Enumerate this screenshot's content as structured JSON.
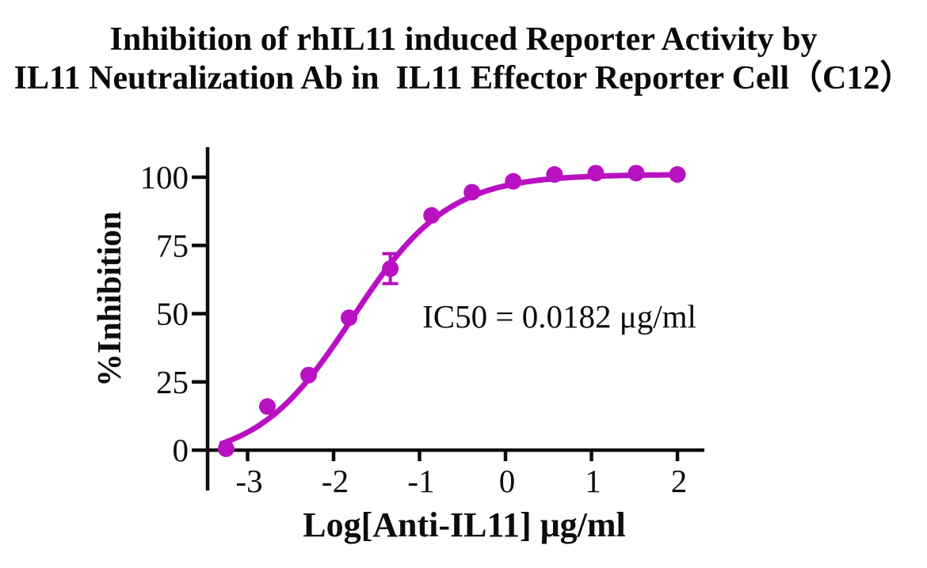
{
  "page": {
    "background": "#ffffff"
  },
  "title": {
    "line1": "Inhibition of rhIL11 induced Reporter Activity by",
    "line2": "IL11 Neutralization Ab in  IL11 Effector Reporter Cell（C12）"
  },
  "chart_data": {
    "type": "scatter",
    "title": "Inhibition of rhIL11 induced Reporter Activity by IL11 Neutralization Ab in IL11 Effector Reporter Cell（C12）",
    "xlabel": "Log[Anti-IL11] μg/ml",
    "ylabel": "%Inhibition",
    "x_ticks": [
      -3,
      -2,
      -1,
      0,
      1,
      2
    ],
    "y_ticks": [
      0,
      25,
      50,
      75,
      100
    ],
    "xlim": [
      -3.45,
      2.31
    ],
    "ylim": [
      0,
      111
    ],
    "grid": false,
    "legend": "none",
    "accent_color": "#B911C1",
    "axis_color": "#0d0d0d",
    "annotation": {
      "text": "IC50 = 0.0182 μg/ml",
      "ic50_ug_ml": 0.0182
    },
    "series": [
      {
        "name": "IL11 Neutralization Ab",
        "marker": "circle",
        "color": "#B911C1",
        "points": [
          {
            "x": -3.25,
            "y": 0.5
          },
          {
            "x": -2.77,
            "y": 16
          },
          {
            "x": -2.29,
            "y": 27.5
          },
          {
            "x": -1.82,
            "y": 48.5
          },
          {
            "x": -1.34,
            "y": 66.5,
            "err": 5.5
          },
          {
            "x": -0.86,
            "y": 86
          },
          {
            "x": -0.39,
            "y": 94.5
          },
          {
            "x": 0.09,
            "y": 98.5
          },
          {
            "x": 0.57,
            "y": 101
          },
          {
            "x": 1.05,
            "y": 101.5
          },
          {
            "x": 1.52,
            "y": 101.5
          },
          {
            "x": 2.0,
            "y": 101
          }
        ]
      }
    ],
    "fit_curve": {
      "model": "4PL",
      "bottom": -4,
      "top": 101,
      "log_ic50": -1.78,
      "hill": 0.78,
      "x_start": -3.3,
      "x_end": 2.02
    }
  }
}
